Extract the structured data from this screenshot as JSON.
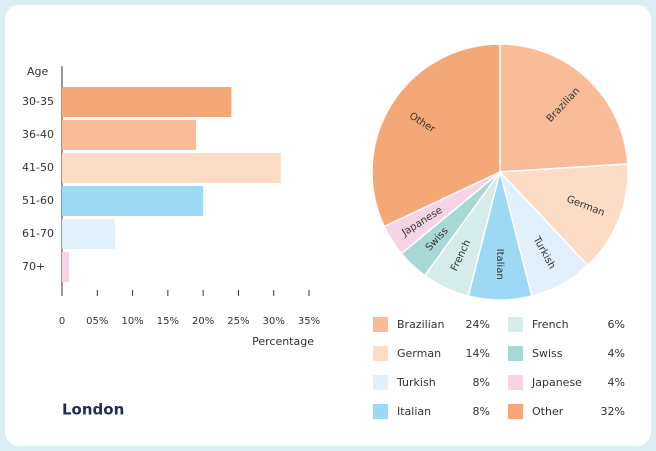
{
  "card_title": "London",
  "chart_data": [
    {
      "type": "bar",
      "orientation": "horizontal",
      "y_label": "Age",
      "x_label": "Percentage",
      "categories": [
        "30-35",
        "36-40",
        "41-50",
        "51-60",
        "61-70",
        "70+"
      ],
      "values": [
        24,
        19,
        31,
        20,
        7.5,
        1
      ],
      "colors": [
        "#f5a877",
        "#f8bc98",
        "#fcdcc5",
        "#9dd9f5",
        "#e1f0fb",
        "#f7d3e6"
      ],
      "xlim": [
        0,
        35
      ],
      "xticks": [
        0,
        {
          "value": 5,
          "label": "05%"
        },
        {
          "value": 10,
          "label": "10%"
        },
        {
          "value": 15,
          "label": "15%"
        },
        {
          "value": 20,
          "label": "20%"
        },
        {
          "value": 25,
          "label": "25%"
        },
        {
          "value": 30,
          "label": "30%"
        },
        {
          "value": 35,
          "label": "35%"
        }
      ]
    },
    {
      "type": "pie",
      "categories": [
        "Brazilian",
        "German",
        "Turkish",
        "Italian",
        "French",
        "Swiss",
        "Japanese",
        "Other"
      ],
      "values": [
        24,
        14,
        8,
        8,
        6,
        4,
        4,
        32
      ],
      "value_labels": [
        "24%",
        "14%",
        "8%",
        "8%",
        "6%",
        "4%",
        "4%",
        "32%"
      ],
      "colors": [
        "#f8bc98",
        "#fcdcc5",
        "#e1f0fb",
        "#9dd9f5",
        "#d6ecea",
        "#a8d8d5",
        "#f7d3e6",
        "#f5a877"
      ]
    }
  ]
}
